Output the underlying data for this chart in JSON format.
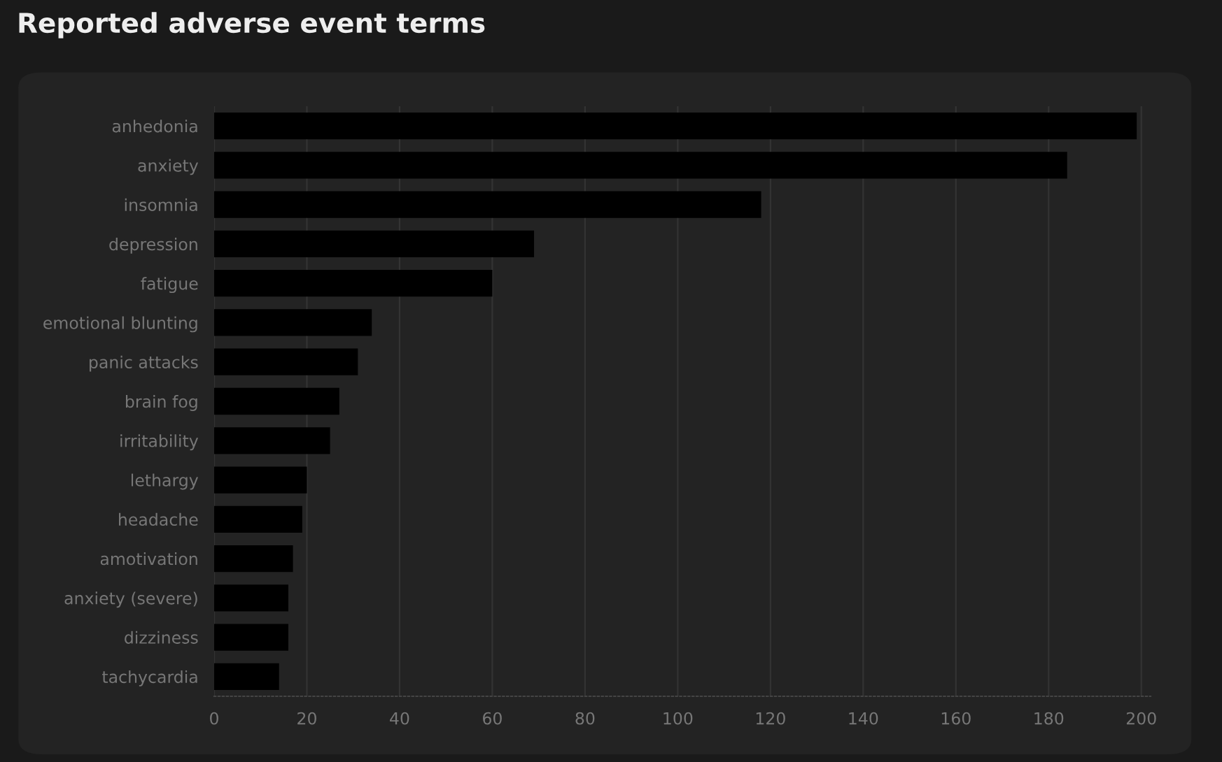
{
  "chart_data": {
    "type": "bar",
    "orientation": "horizontal",
    "title": "Reported adverse event terms",
    "categories": [
      "anhedonia",
      "anxiety",
      "insomnia",
      "depression",
      "fatigue",
      "emotional blunting",
      "panic attacks",
      "brain fog",
      "irritability",
      "lethargy",
      "headache",
      "amotivation",
      "anxiety (severe)",
      "dizziness",
      "tachycardia"
    ],
    "values": [
      199,
      184,
      118,
      69,
      60,
      34,
      31,
      27,
      25,
      20,
      19,
      17,
      16,
      16,
      14
    ],
    "color": "#000000",
    "xlim": [
      0,
      202
    ],
    "xticks": [
      0,
      20,
      40,
      60,
      80,
      100,
      120,
      140,
      160,
      180,
      200
    ],
    "grid": "x"
  }
}
